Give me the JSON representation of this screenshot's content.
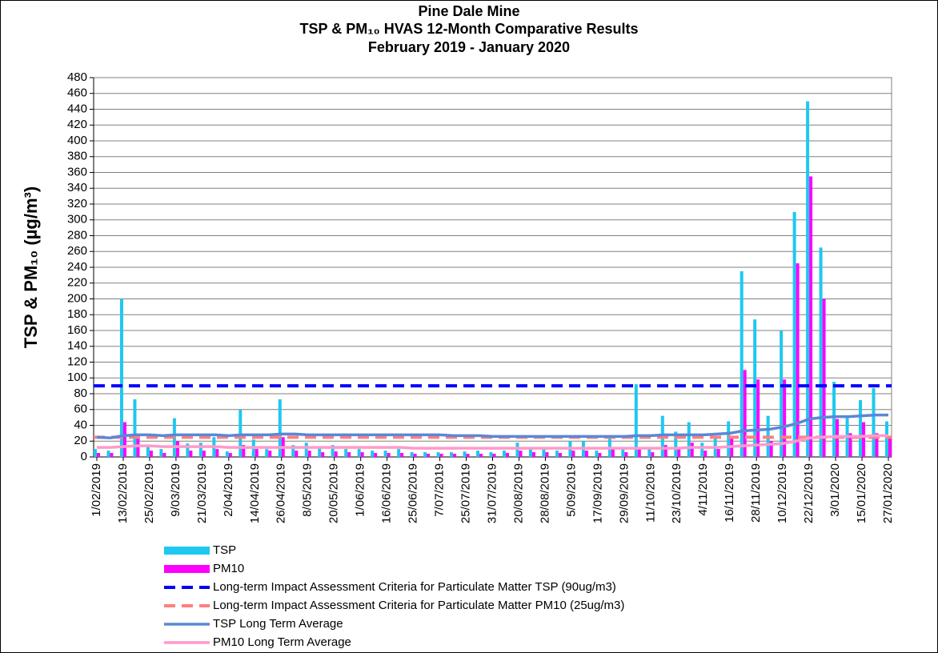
{
  "chart_data": {
    "type": "bar",
    "title": [
      "Pine Dale Mine",
      "TSP & PM₁₀ HVAS 12-Month Comparative Results",
      "February 2019 - January 2020"
    ],
    "y_label": "TSP & PM₁₀ (µg/m³)",
    "categories": [
      "1/02/2019",
      null,
      "13/02/2019",
      null,
      "25/02/2019",
      null,
      "9/03/2019",
      null,
      "21/03/2019",
      null,
      "2/04/2019",
      null,
      "14/04/2019",
      null,
      "26/04/2019",
      null,
      "8/05/2019",
      null,
      "20/05/2019",
      null,
      "1/06/2019",
      null,
      "16/06/2019",
      null,
      "25/06/2019",
      null,
      "7/07/2019",
      null,
      "25/07/2019",
      null,
      "31/07/2019",
      null,
      "20/08/2019",
      null,
      "28/08/2019",
      null,
      "5/09/2019",
      null,
      "17/09/2019",
      null,
      "29/09/2019",
      null,
      "11/10/2019",
      null,
      "23/10/2019",
      null,
      "4/11/2019",
      null,
      "16/11/2019",
      null,
      "28/11/2019",
      null,
      "10/12/2019",
      null,
      "22/12/2019",
      null,
      "3/01/2020",
      null,
      "15/01/2020",
      null,
      "27/01/2020"
    ],
    "series": [
      {
        "name": "TSP",
        "kind": "bar",
        "color": "#1ec8f0",
        "values": [
          10,
          8,
          200,
          73,
          15,
          10,
          49,
          17,
          18,
          25,
          7,
          60,
          22,
          10,
          73,
          15,
          18,
          12,
          15,
          10,
          10,
          8,
          8,
          10,
          6,
          6,
          6,
          6,
          7,
          8,
          6,
          8,
          18,
          10,
          10,
          8,
          20,
          20,
          8,
          25,
          10,
          92,
          10,
          52,
          32,
          44,
          18,
          25,
          45,
          235,
          174,
          52,
          160,
          310,
          450,
          265,
          95,
          50,
          72,
          87,
          45
        ]
      },
      {
        "name": "PM10",
        "kind": "bar",
        "color": "#ff00ff",
        "values": [
          5,
          5,
          44,
          28,
          8,
          5,
          20,
          8,
          8,
          10,
          5,
          15,
          10,
          8,
          25,
          8,
          8,
          6,
          7,
          6,
          6,
          5,
          5,
          5,
          4,
          4,
          4,
          4,
          4,
          4,
          4,
          5,
          8,
          6,
          6,
          5,
          8,
          8,
          5,
          10,
          6,
          10,
          6,
          15,
          12,
          18,
          8,
          10,
          25,
          110,
          98,
          20,
          98,
          245,
          355,
          200,
          48,
          30,
          44,
          30,
          24
        ]
      },
      {
        "name": "Long-term Impact Assessment Criteria for Particulate Matter TSP (90ug/m3)",
        "kind": "hline",
        "color": "#0000ff",
        "value": 90
      },
      {
        "name": "Long-term Impact Assessment Criteria for Particulate Matter PM10 (25ug/m3)",
        "kind": "hline",
        "color": "#ff7f7f",
        "value": 25
      },
      {
        "name": "TSP Long Term Average",
        "kind": "line",
        "color": "#5b87d6",
        "values": [
          25,
          24,
          27,
          28,
          28,
          27,
          28,
          28,
          28,
          28,
          27,
          28,
          28,
          28,
          29,
          29,
          28,
          28,
          28,
          28,
          28,
          28,
          28,
          28,
          28,
          28,
          28,
          27,
          27,
          27,
          26,
          26,
          26,
          26,
          26,
          26,
          26,
          26,
          26,
          26,
          26,
          27,
          27,
          28,
          28,
          28,
          28,
          29,
          30,
          33,
          34,
          35,
          38,
          42,
          48,
          50,
          51,
          51,
          52,
          53,
          53
        ]
      },
      {
        "name": "PM10 Long Term Average",
        "kind": "line",
        "color": "#ff99cc",
        "values": [
          12,
          12,
          13,
          14,
          14,
          13,
          13,
          13,
          13,
          13,
          12,
          12,
          12,
          12,
          12,
          12,
          12,
          12,
          12,
          12,
          12,
          12,
          12,
          12,
          11,
          11,
          11,
          11,
          11,
          11,
          11,
          11,
          11,
          11,
          11,
          11,
          11,
          11,
          11,
          11,
          11,
          11,
          11,
          11,
          11,
          12,
          12,
          12,
          13,
          14,
          15,
          16,
          17,
          20,
          24,
          25,
          26,
          26,
          26,
          27,
          27
        ]
      }
    ],
    "ylim": [
      0,
      480
    ],
    "yticks": [
      0,
      20,
      40,
      60,
      80,
      100,
      120,
      140,
      160,
      180,
      200,
      220,
      240,
      260,
      280,
      300,
      320,
      340,
      360,
      380,
      400,
      420,
      440,
      460,
      480
    ],
    "grid": true
  }
}
